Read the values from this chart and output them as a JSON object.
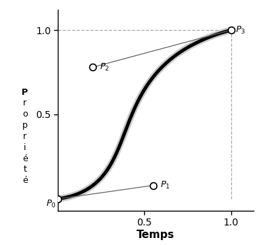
{
  "P0": [
    0.0,
    0.0
  ],
  "P1": [
    0.55,
    0.08
  ],
  "P2": [
    0.2,
    0.78
  ],
  "P3": [
    1.0,
    1.0
  ],
  "curve_color": "#000000",
  "curve_linewidth": 3.5,
  "tangent_color": "#666666",
  "tangent_linewidth": 0.9,
  "point_facecolor": "white",
  "point_edgecolor": "black",
  "point_markersize": 7,
  "dashed_color": "#aaaaaa",
  "xlabel": "Temps",
  "ylabel_stacked": "Propriété",
  "xlim": [
    0.0,
    1.13
  ],
  "ylim": [
    -0.07,
    1.12
  ],
  "xticks": [
    0.5,
    1.0
  ],
  "yticks": [
    0.5,
    1.0
  ],
  "background_color": "#ffffff",
  "shadow_color": "#cccccc",
  "shadow_linewidth": 7
}
